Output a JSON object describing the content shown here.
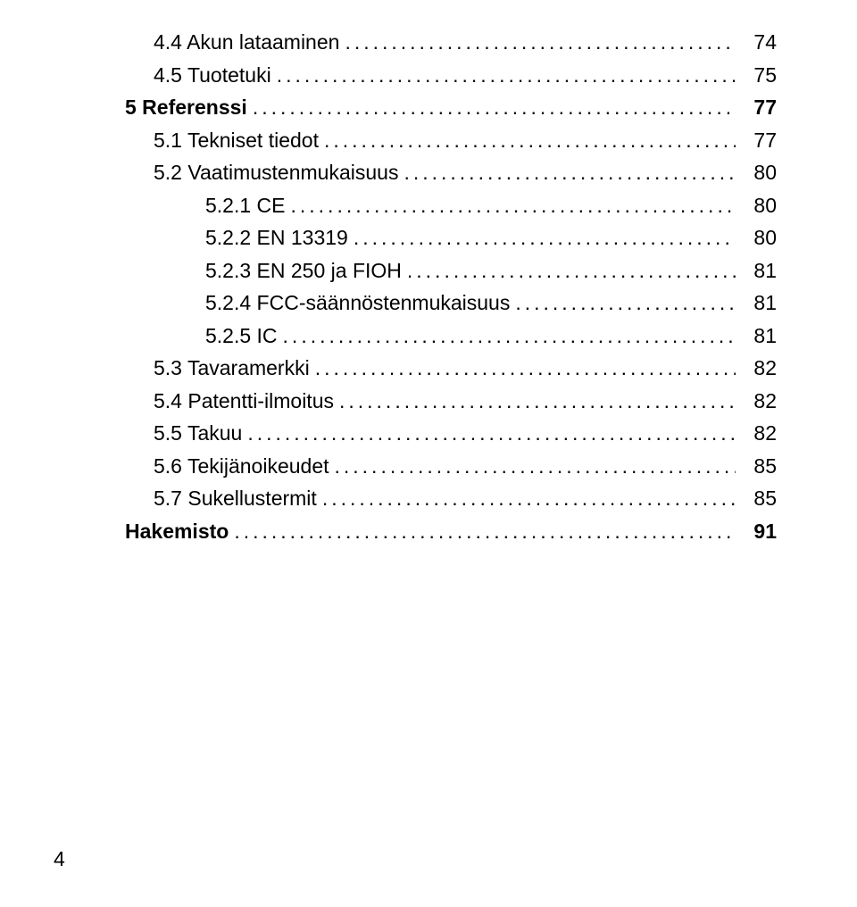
{
  "toc": [
    {
      "label": "4.4 Akun lataaminen",
      "page": "74",
      "level": 2
    },
    {
      "label": "4.5 Tuotetuki",
      "page": "75",
      "level": 2
    },
    {
      "label": "5 Referenssi",
      "page": "77",
      "level": 1
    },
    {
      "label": "5.1 Tekniset tiedot",
      "page": "77",
      "level": 2
    },
    {
      "label": "5.2 Vaatimustenmukaisuus",
      "page": "80",
      "level": 2
    },
    {
      "label": "5.2.1 CE",
      "page": "80",
      "level": 3
    },
    {
      "label": "5.2.2 EN 13319",
      "page": "80",
      "level": 3
    },
    {
      "label": "5.2.3 EN 250 ja FIOH",
      "page": "81",
      "level": 3
    },
    {
      "label": "5.2.4 FCC-säännöstenmukaisuus",
      "page": "81",
      "level": 3
    },
    {
      "label": "5.2.5 IC",
      "page": "81",
      "level": 3
    },
    {
      "label": "5.3 Tavaramerkki",
      "page": "82",
      "level": 2
    },
    {
      "label": "5.4 Patentti-ilmoitus",
      "page": "82",
      "level": 2
    },
    {
      "label": "5.5 Takuu",
      "page": "82",
      "level": 2
    },
    {
      "label": "5.6 Tekijänoikeudet",
      "page": "85",
      "level": 2
    },
    {
      "label": "5.7 Sukellustermit",
      "page": "85",
      "level": 2
    },
    {
      "label": "Hakemisto",
      "page": "91",
      "level": "index"
    }
  ],
  "page_number": "4"
}
